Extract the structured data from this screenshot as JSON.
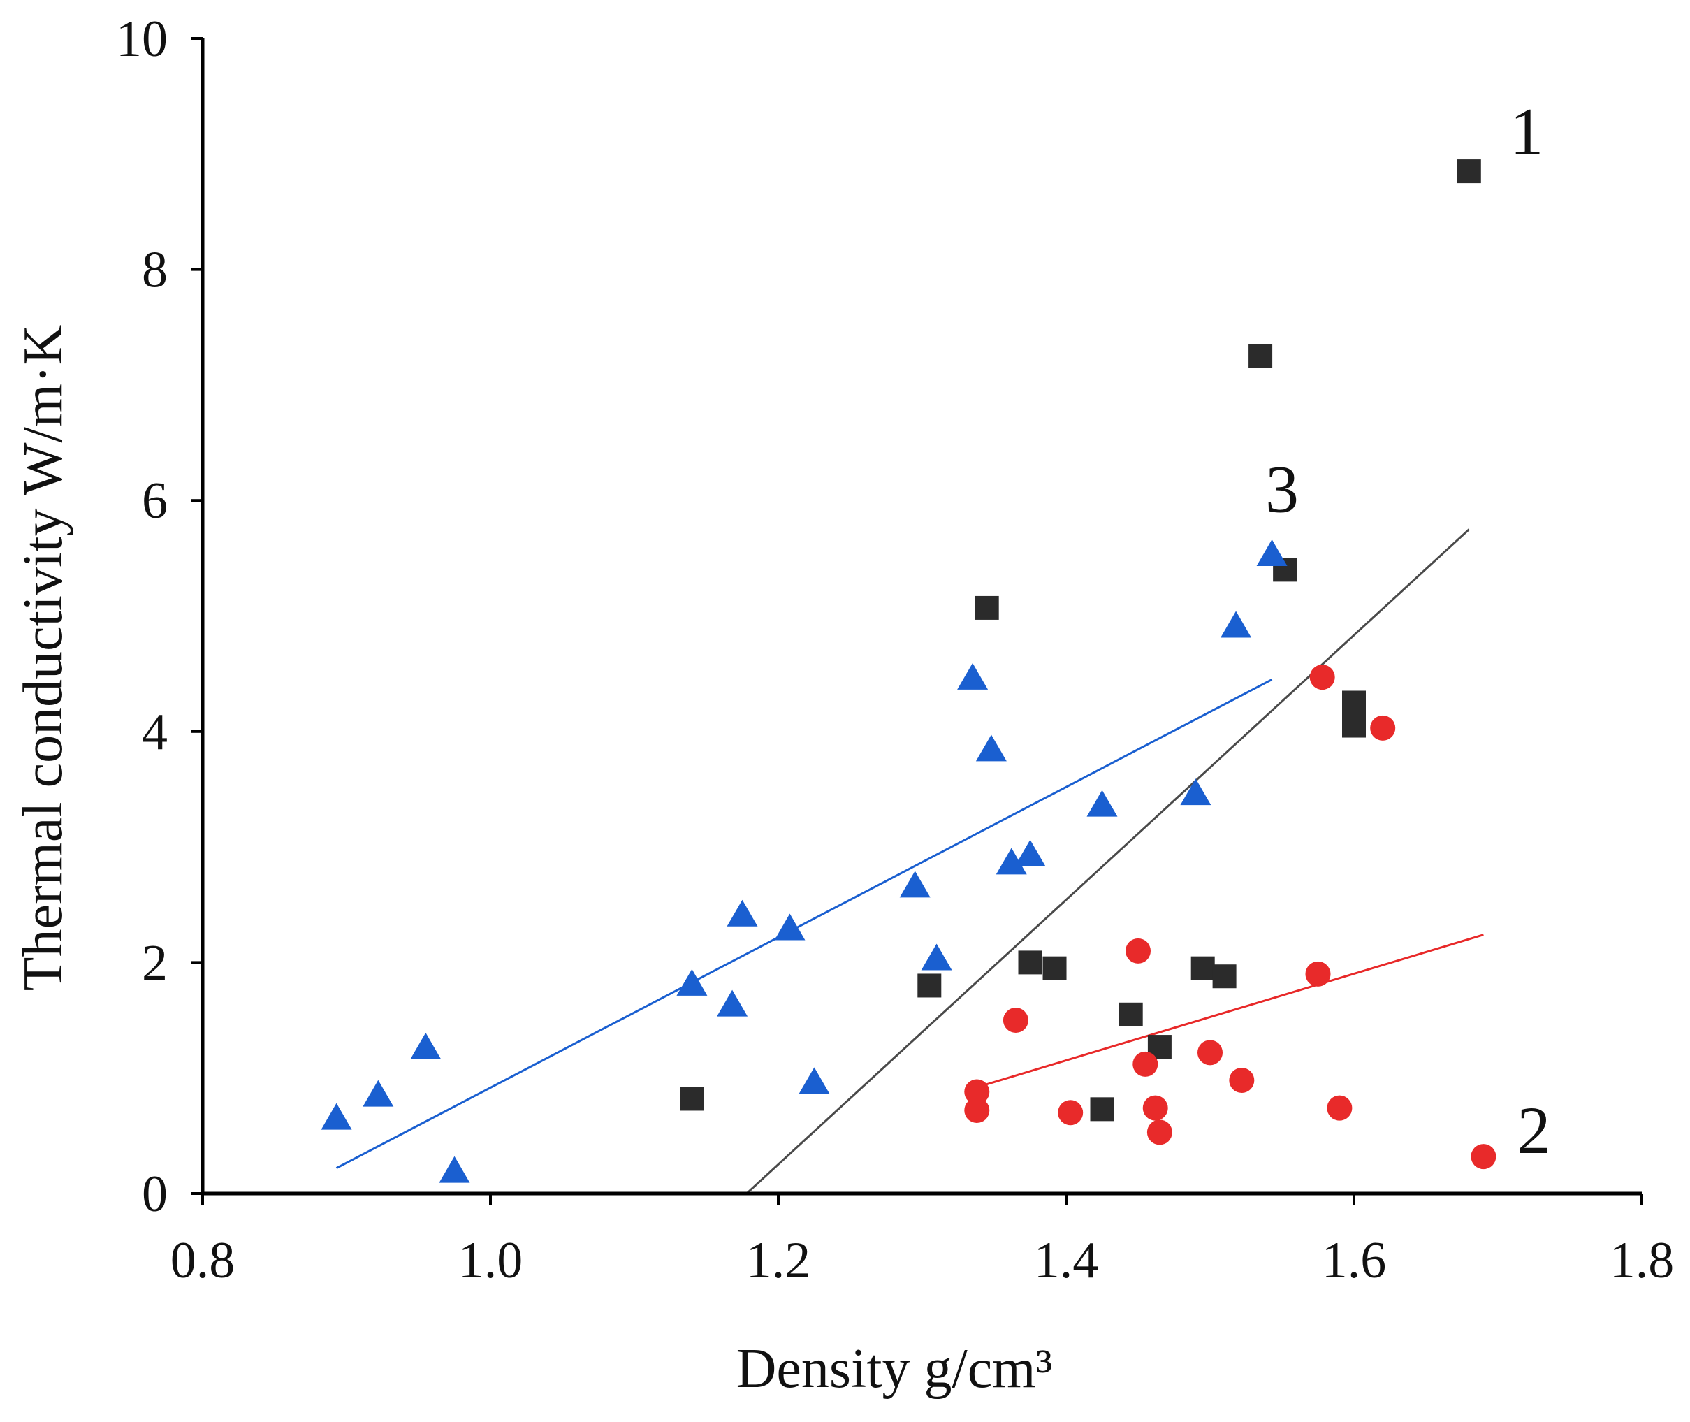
{
  "chart_data": {
    "type": "scatter",
    "title": "",
    "xlabel": "Density g/cm³",
    "ylabel": "Thermal conductivity W/m·K",
    "xlim": [
      0.8,
      1.8
    ],
    "ylim": [
      0,
      10
    ],
    "xticks": [
      0.8,
      1.0,
      1.2,
      1.4,
      1.6,
      1.8
    ],
    "xtick_labels": [
      "0.8",
      "1.0",
      "1.2",
      "1.4",
      "1.6",
      "1.8"
    ],
    "yticks": [
      0,
      2,
      4,
      6,
      8,
      10
    ],
    "ytick_labels": [
      "0",
      "2",
      "4",
      "6",
      "8",
      "10"
    ],
    "grid": false,
    "series": [
      {
        "name": "1",
        "marker": "square",
        "color": "#2b2b2b",
        "points": [
          [
            1.68,
            8.85
          ],
          [
            1.535,
            7.25
          ],
          [
            1.552,
            5.4
          ],
          [
            1.345,
            5.07
          ],
          [
            1.6,
            4.25
          ],
          [
            1.6,
            4.05
          ],
          [
            1.375,
            2.0
          ],
          [
            1.392,
            1.95
          ],
          [
            1.495,
            1.95
          ],
          [
            1.51,
            1.88
          ],
          [
            1.305,
            1.8
          ],
          [
            1.445,
            1.55
          ],
          [
            1.465,
            1.27
          ],
          [
            1.14,
            0.82
          ],
          [
            1.425,
            0.73
          ]
        ],
        "trendline": null
      },
      {
        "name": "2",
        "marker": "circle",
        "color": "#e82a2a",
        "points": [
          [
            1.578,
            4.47
          ],
          [
            1.62,
            4.03
          ],
          [
            1.45,
            2.1
          ],
          [
            1.575,
            1.9
          ],
          [
            1.365,
            1.5
          ],
          [
            1.5,
            1.22
          ],
          [
            1.455,
            1.12
          ],
          [
            1.522,
            0.98
          ],
          [
            1.338,
            0.88
          ],
          [
            1.338,
            0.72
          ],
          [
            1.403,
            0.7
          ],
          [
            1.462,
            0.74
          ],
          [
            1.59,
            0.74
          ],
          [
            1.465,
            0.53
          ],
          [
            1.69,
            0.32
          ]
        ],
        "trendline": [
          [
            1.338,
            0.92
          ],
          [
            1.69,
            2.24
          ]
        ]
      },
      {
        "name": "3",
        "marker": "triangle",
        "color": "#1a5fd0",
        "points": [
          [
            0.893,
            0.64
          ],
          [
            0.922,
            0.84
          ],
          [
            0.955,
            1.25
          ],
          [
            0.975,
            0.18
          ],
          [
            1.14,
            1.8
          ],
          [
            1.168,
            1.62
          ],
          [
            1.175,
            2.4
          ],
          [
            1.208,
            2.28
          ],
          [
            1.225,
            0.95
          ],
          [
            1.295,
            2.65
          ],
          [
            1.31,
            2.02
          ],
          [
            1.335,
            4.45
          ],
          [
            1.348,
            3.83
          ],
          [
            1.362,
            2.85
          ],
          [
            1.375,
            2.92
          ],
          [
            1.425,
            3.35
          ],
          [
            1.49,
            3.45
          ],
          [
            1.518,
            4.9
          ],
          [
            1.543,
            5.52
          ]
        ],
        "trendline": [
          [
            0.893,
            0.22
          ],
          [
            1.543,
            4.45
          ]
        ]
      }
    ],
    "extra_lines": [
      {
        "name": "black-trendline",
        "color": "#4a4a4a",
        "points": [
          [
            1.178,
            0.0
          ],
          [
            1.68,
            5.75
          ]
        ]
      }
    ],
    "annotations": [
      {
        "text": "1",
        "x": 1.72,
        "y": 9.0
      },
      {
        "text": "2",
        "x": 1.725,
        "y": 0.35
      },
      {
        "text": "3",
        "x": 1.55,
        "y": 5.9
      }
    ]
  }
}
